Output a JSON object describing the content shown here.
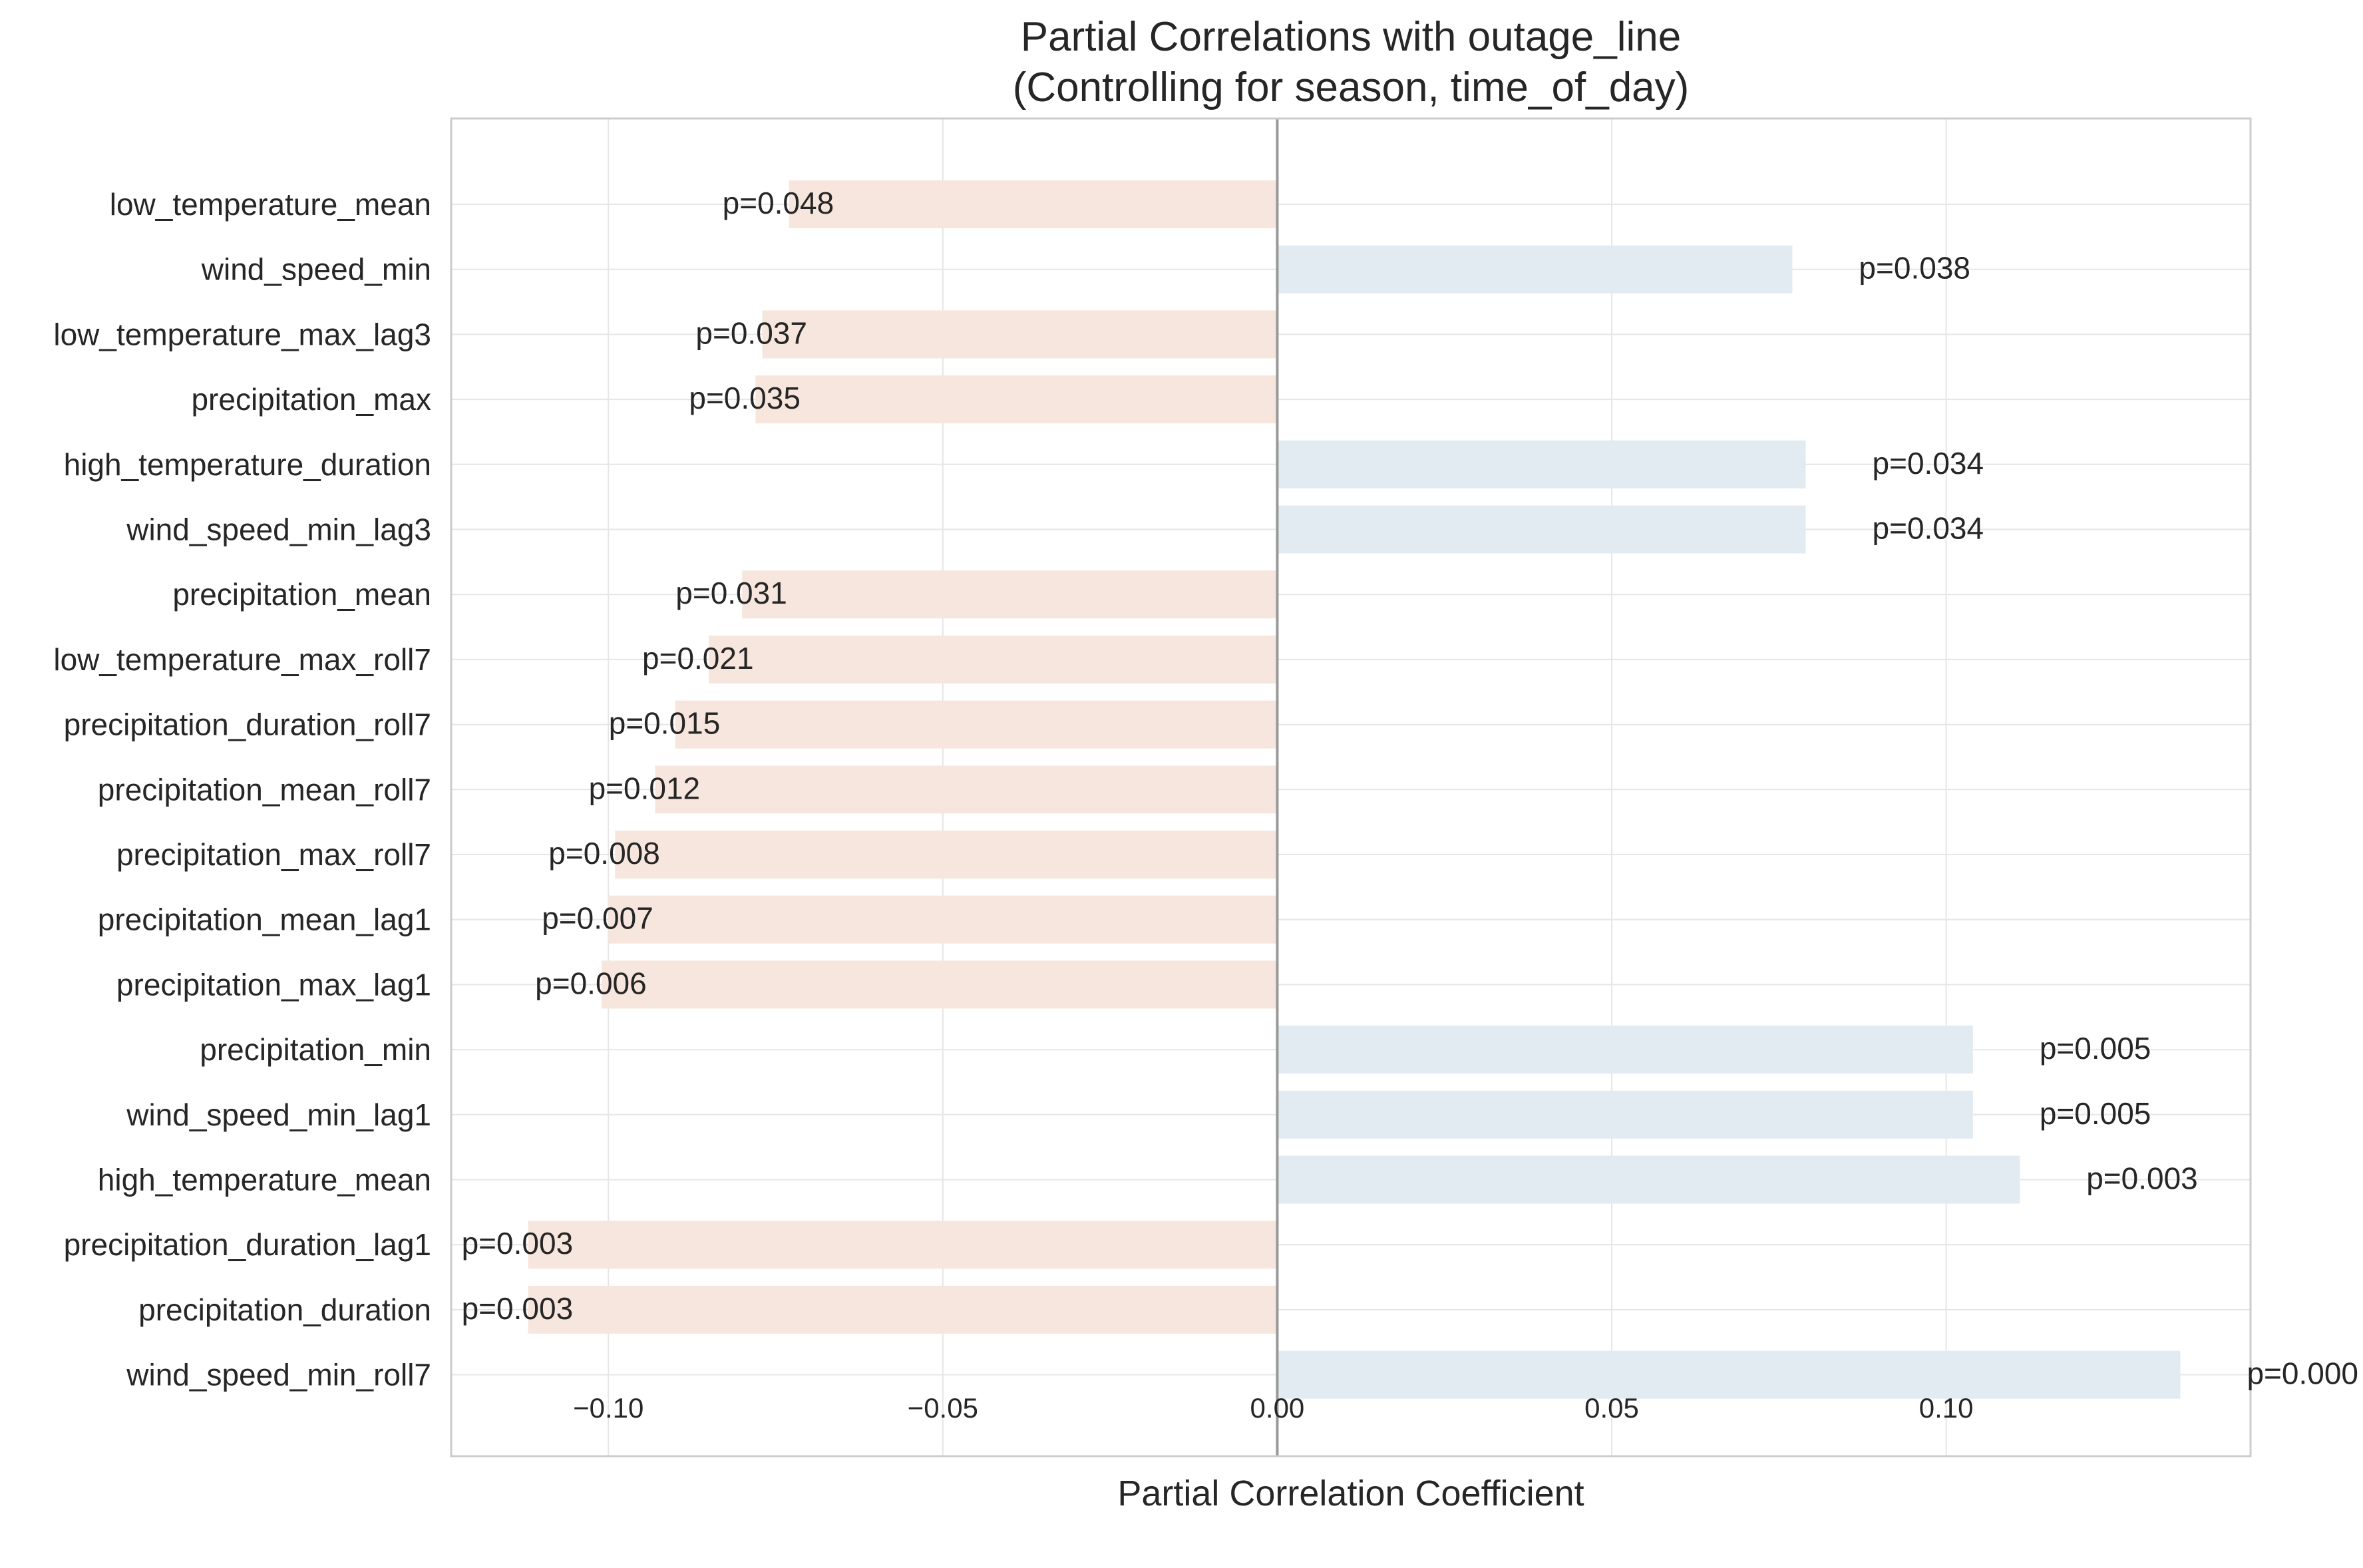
{
  "chart_data": {
    "type": "bar",
    "orientation": "horizontal",
    "title": "Partial Correlations with outage_line",
    "subtitle": "(Controlling for season, time_of_day)",
    "xlabel": "Partial Correlation Coefficient",
    "ylabel": "",
    "xlim": [
      -0.1235,
      0.1455
    ],
    "xticks": [
      -0.1,
      -0.05,
      0.0,
      0.05,
      0.1
    ],
    "xtick_labels": [
      "−0.10",
      "−0.05",
      "0.00",
      "0.05",
      "0.10"
    ],
    "grid": true,
    "colors": {
      "negative": "#f7e6dd",
      "positive": "#e1ebf1",
      "zero_line": "#999999"
    },
    "categories": [
      "low_temperature_mean",
      "wind_speed_min",
      "low_temperature_max_lag3",
      "precipitation_max",
      "high_temperature_duration",
      "wind_speed_min_lag3",
      "precipitation_mean",
      "low_temperature_max_roll7",
      "precipitation_duration_roll7",
      "precipitation_mean_roll7",
      "precipitation_max_roll7",
      "precipitation_mean_lag1",
      "precipitation_max_lag1",
      "precipitation_min",
      "wind_speed_min_lag1",
      "high_temperature_mean",
      "precipitation_duration_lag1",
      "precipitation_duration",
      "wind_speed_min_roll7"
    ],
    "values": [
      -0.073,
      0.077,
      -0.077,
      -0.078,
      0.079,
      0.079,
      -0.08,
      -0.085,
      -0.09,
      -0.093,
      -0.099,
      -0.1,
      -0.101,
      0.104,
      0.104,
      0.111,
      -0.112,
      -0.112,
      0.135
    ],
    "p_labels": [
      "p=0.048",
      "p=0.038",
      "p=0.037",
      "p=0.035",
      "p=0.034",
      "p=0.034",
      "p=0.031",
      "p=0.021",
      "p=0.015",
      "p=0.012",
      "p=0.008",
      "p=0.007",
      "p=0.006",
      "p=0.005",
      "p=0.005",
      "p=0.003",
      "p=0.003",
      "p=0.003",
      "p=0.000"
    ]
  }
}
